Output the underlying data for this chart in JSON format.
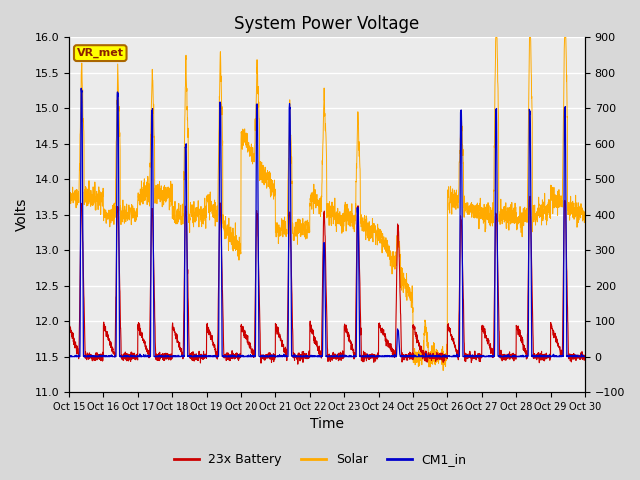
{
  "title": "System Power Voltage",
  "xlabel": "Time",
  "ylabel_left": "Volts",
  "ylim_left": [
    11.0,
    16.0
  ],
  "ylim_right": [
    -100,
    900
  ],
  "yticks_left": [
    11.0,
    11.5,
    12.0,
    12.5,
    13.0,
    13.5,
    14.0,
    14.5,
    15.0,
    15.5,
    16.0
  ],
  "yticks_right": [
    -100,
    0,
    100,
    200,
    300,
    400,
    500,
    600,
    700,
    800,
    900
  ],
  "xtick_labels": [
    "Oct 15",
    "Oct 16",
    "Oct 17",
    "Oct 18",
    "Oct 19",
    "Oct 20",
    "Oct 21",
    "Oct 22",
    "Oct 23",
    "Oct 24",
    "Oct 25",
    "Oct 26",
    "Oct 27",
    "Oct 28",
    "Oct 29",
    "Oct 30"
  ],
  "legend_entries": [
    "23x Battery",
    "Solar",
    "CM1_in"
  ],
  "line_colors": [
    "#cc0000",
    "#ffaa00",
    "#0000cc"
  ],
  "bg_color": "#d8d8d8",
  "plot_bg_color": "#ebebeb",
  "vr_met_box_color": "#ffff00",
  "vr_met_box_border": "#aa6600",
  "grid_color": "#ffffff",
  "title_fontsize": 12,
  "axis_fontsize": 10,
  "tick_fontsize": 8,
  "legend_fontsize": 9
}
